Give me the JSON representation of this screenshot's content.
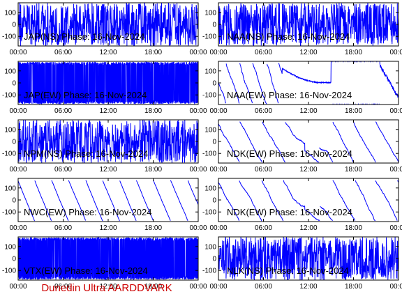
{
  "footer": "Dunedin Ultra AARDDVARK",
  "colors": {
    "trace": "#0000ff",
    "axes": "#000000",
    "footer": "#cc0000",
    "background": "#ffffff"
  },
  "chart_data": [
    {
      "type": "line",
      "title": "JAP(NS) Phase: 16-Nov-2024",
      "xlim": [
        0,
        24
      ],
      "ylim": [
        -180,
        180
      ],
      "xticks": [
        "00:00",
        "06:00",
        "12:00",
        "18:00",
        "00:00"
      ],
      "yticks": [
        "100",
        "0",
        "-100"
      ],
      "pattern": "noise"
    },
    {
      "type": "line",
      "title": "NAA(NS) Phase: 16-Nov-2024",
      "xlim": [
        0,
        24
      ],
      "ylim": [
        -180,
        180
      ],
      "xticks": [
        "00:00",
        "06:00",
        "12:00",
        "18:00",
        "00:00"
      ],
      "yticks": [
        "100",
        "0",
        "-100"
      ],
      "pattern": "noise"
    },
    {
      "type": "line",
      "title": "JAP(EW) Phase: 16-Nov-2024",
      "xlim": [
        0,
        24
      ],
      "ylim": [
        -180,
        180
      ],
      "xticks": [
        "00:00",
        "06:00",
        "12:00",
        "18:00",
        "00:00"
      ],
      "yticks": [
        "100",
        "0",
        "-100"
      ],
      "pattern": "dense"
    },
    {
      "type": "line",
      "title": "NAA(EW) Phase: 16-Nov-2024",
      "xlim": [
        0,
        24
      ],
      "ylim": [
        -180,
        180
      ],
      "xticks": [
        "00:00",
        "06:00",
        "12:00",
        "18:00",
        "00:00"
      ],
      "yticks": [
        "100",
        "0",
        "-100"
      ],
      "pattern": "naa_ew"
    },
    {
      "type": "line",
      "title": "NPM(NS) Phase: 16-Nov-2024",
      "xlim": [
        0,
        24
      ],
      "ylim": [
        -180,
        180
      ],
      "xticks": [
        "00:00",
        "06:00",
        "12:00",
        "18:00",
        "00:00"
      ],
      "yticks": [
        "100",
        "0",
        "-100"
      ],
      "pattern": "noise"
    },
    {
      "type": "line",
      "title": "NDK(EW) Phase: 16-Nov-2024",
      "xlim": [
        0,
        24
      ],
      "ylim": [
        -180,
        180
      ],
      "xticks": [
        "00:00",
        "06:00",
        "12:00",
        "18:00",
        "00:00"
      ],
      "yticks": [
        "100",
        "0",
        "-100"
      ],
      "pattern": "ramp"
    },
    {
      "type": "line",
      "title": "NWC(EW) Phase: 16-Nov-2024",
      "xlim": [
        0,
        24
      ],
      "ylim": [
        -180,
        180
      ],
      "xticks": [
        "00:00",
        "06:00",
        "12:00",
        "18:00",
        "00:00"
      ],
      "yticks": [
        "100",
        "0",
        "-100"
      ],
      "pattern": "nwc"
    },
    {
      "type": "line",
      "title": "NDK(EW) Phase: 16-Nov-2024",
      "xlim": [
        0,
        24
      ],
      "ylim": [
        -180,
        180
      ],
      "xticks": [
        "00:00",
        "06:00",
        "12:00",
        "18:00",
        "00:00"
      ],
      "yticks": [
        "100",
        "0",
        "-100"
      ],
      "pattern": "ramp"
    },
    {
      "type": "line",
      "title": "VTX(EW) Phase: 16-Nov-2024",
      "xlim": [
        0,
        24
      ],
      "ylim": [
        -180,
        180
      ],
      "xticks": [
        "00:00",
        "06:00",
        "12:00",
        "18:00",
        "00:00"
      ],
      "yticks": [
        "100",
        "0",
        "-100"
      ],
      "pattern": "dense"
    },
    {
      "type": "line",
      "title": "NLK(NS) Phase: 16-Nov-2024",
      "xlim": [
        0,
        24
      ],
      "ylim": [
        -180,
        180
      ],
      "xticks": [
        "00:00",
        "06:00",
        "12:00",
        "18:00",
        "00:00"
      ],
      "yticks": [
        "100",
        "0",
        "-100"
      ],
      "pattern": "noise"
    }
  ]
}
